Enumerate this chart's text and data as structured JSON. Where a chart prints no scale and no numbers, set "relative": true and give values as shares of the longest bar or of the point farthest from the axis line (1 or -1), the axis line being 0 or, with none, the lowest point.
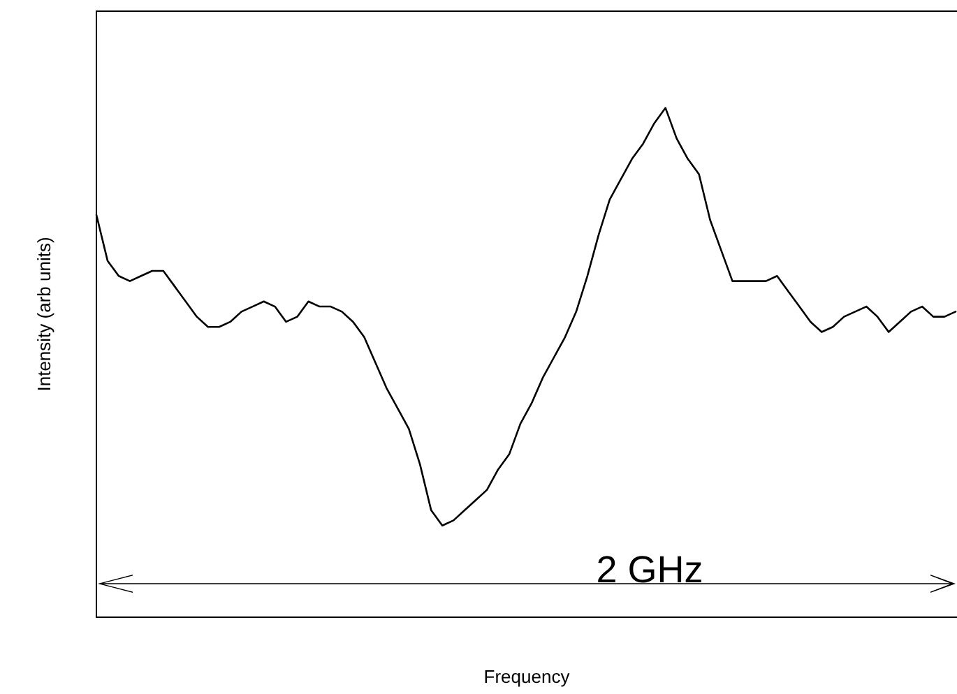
{
  "chart_data": {
    "type": "line",
    "relative": true,
    "xlabel": "Frequency",
    "ylabel": "Intensity (arb units)",
    "annotations": [
      "2 GHz"
    ],
    "categories": [
      null,
      null,
      null,
      null,
      null,
      null,
      null,
      null,
      null,
      null,
      null,
      null,
      null,
      null,
      null,
      null,
      null,
      null,
      null,
      null,
      null,
      null,
      null,
      null,
      null,
      null,
      null,
      null,
      null,
      null,
      null,
      null,
      null,
      null,
      null,
      null,
      null,
      null,
      null,
      null,
      null,
      null,
      null,
      null,
      null,
      null,
      null,
      null,
      null,
      null,
      null,
      null,
      null,
      null,
      null,
      null,
      null,
      null,
      null,
      null,
      null,
      null,
      null,
      null,
      null,
      null,
      null,
      null,
      null,
      null,
      null,
      null,
      null,
      null,
      null,
      null,
      null,
      null
    ],
    "series": [
      {
        "color": "#000000",
        "values": [
          0.79,
          0.7,
          0.67,
          0.66,
          0.67,
          0.68,
          0.68,
          0.65,
          0.62,
          0.59,
          0.57,
          0.57,
          0.58,
          0.6,
          0.61,
          0.62,
          0.61,
          0.58,
          0.59,
          0.62,
          0.61,
          0.61,
          0.6,
          0.58,
          0.55,
          0.5,
          0.45,
          0.41,
          0.37,
          0.3,
          0.21,
          0.18,
          0.19,
          0.21,
          0.23,
          0.25,
          0.29,
          0.32,
          0.38,
          0.42,
          0.47,
          0.51,
          0.55,
          0.6,
          0.67,
          0.75,
          0.82,
          0.86,
          0.9,
          0.93,
          0.97,
          1,
          0.94,
          0.9,
          0.87,
          0.78,
          0.72,
          0.66,
          0.66,
          0.66,
          0.66,
          0.67,
          0.64,
          0.61,
          0.58,
          0.56,
          0.57,
          0.59,
          0.6,
          0.61,
          0.59,
          0.56,
          0.58,
          0.6,
          0.61,
          0.59,
          0.59,
          0.6
        ]
      }
    ]
  }
}
